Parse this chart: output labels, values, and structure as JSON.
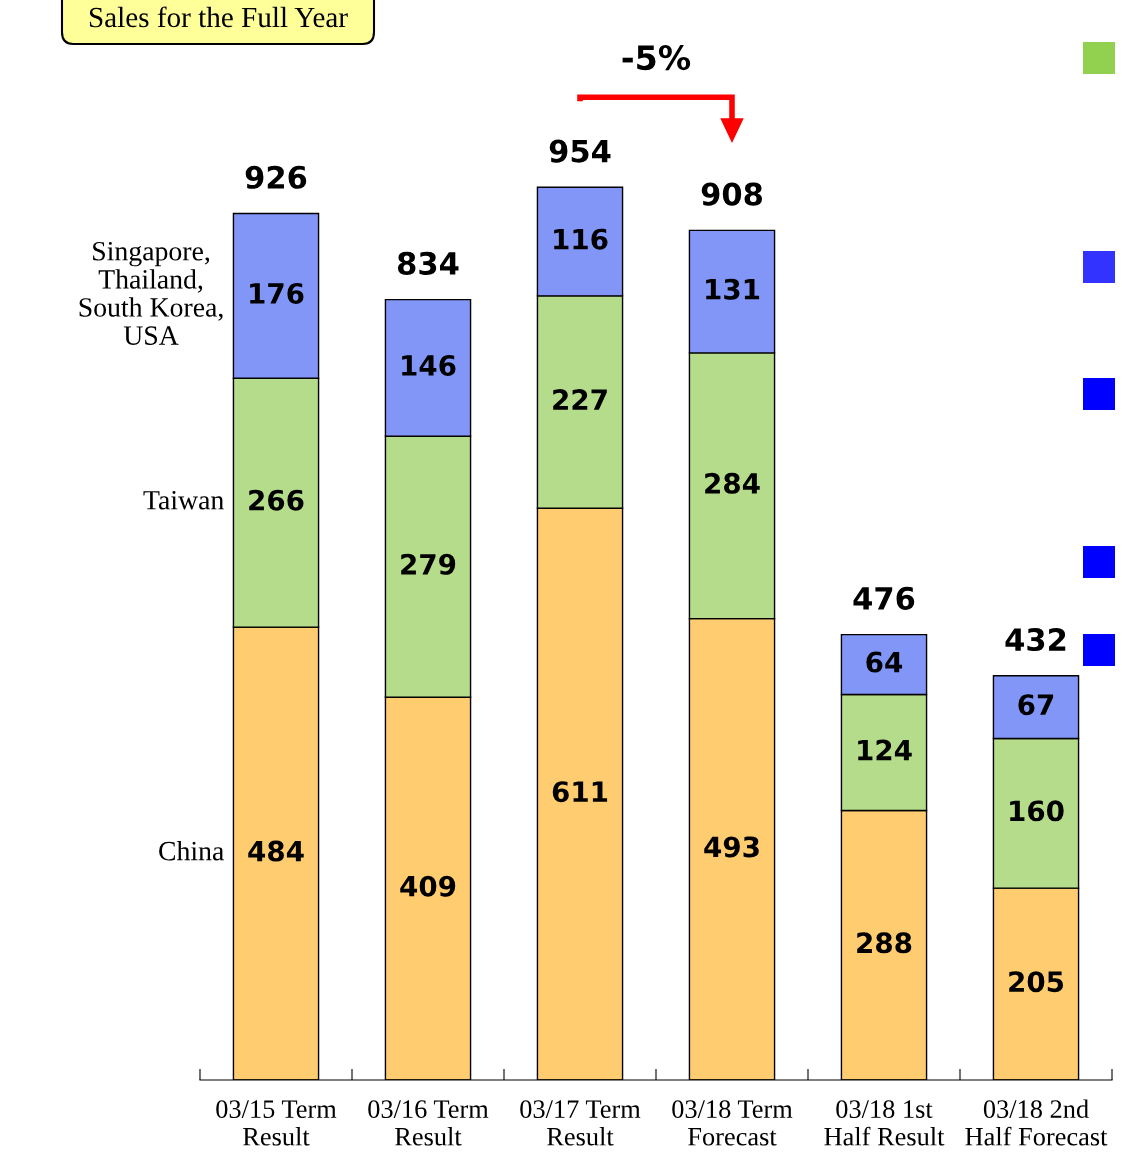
{
  "chart_data": {
    "type": "bar",
    "title": "Sales for the Full Year",
    "stacked": true,
    "data_labels": true,
    "grid": false,
    "categories": [
      "03/15 Term\nResult",
      "03/16 Term\nResult",
      "03/17 Term\nResult",
      "03/18 Term\nForecast",
      "03/18 1st\nHalf Result",
      "03/18 2nd\nHalf Forecast"
    ],
    "series": [
      {
        "name": "China",
        "color": "#ffcc70",
        "values": [
          484,
          409,
          611,
          493,
          288,
          205
        ]
      },
      {
        "name": "Taiwan",
        "color": "#b5dc8a",
        "values": [
          266,
          279,
          227,
          284,
          124,
          160
        ]
      },
      {
        "name": "Singapore,\nThailand,\nSouth Korea,\nUSA",
        "color": "#8196f7",
        "values": [
          176,
          146,
          116,
          131,
          64,
          67
        ]
      }
    ],
    "totals": [
      "926",
      "834",
      "954",
      "908",
      "476",
      "432"
    ],
    "annotations": [
      "-5%"
    ]
  }
}
